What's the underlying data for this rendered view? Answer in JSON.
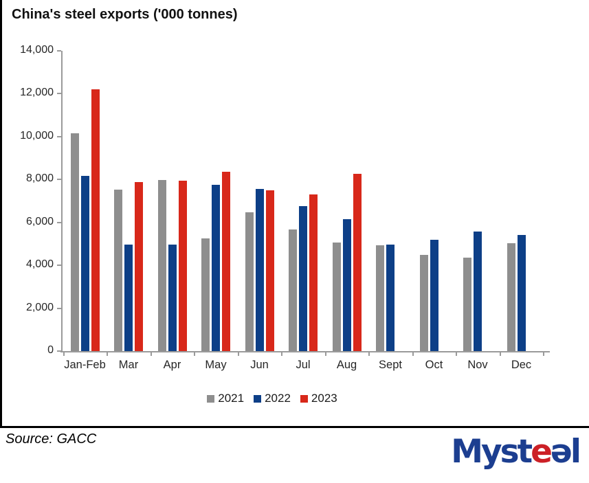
{
  "title": "China's steel exports ('000 tonnes)",
  "source_note": "Source: GACC",
  "logo": {
    "part_myst": "Myst",
    "part_e1": "e",
    "part_e2": "ə",
    "part_l": "l",
    "brand_blue": "#1c3e90",
    "brand_red": "#cc2026"
  },
  "colors": {
    "series_2021": "#8e8e8e",
    "series_2022": "#0d3f87",
    "series_2023": "#d8281a",
    "axis": "#9a9a9a"
  },
  "chart_data": {
    "type": "bar",
    "title": "China's steel exports ('000 tonnes)",
    "categories": [
      "Jan-Feb",
      "Mar",
      "Apr",
      "May",
      "Jun",
      "Jul",
      "Aug",
      "Sept",
      "Oct",
      "Nov",
      "Dec"
    ],
    "series": [
      {
        "name": "2021",
        "color": "#8e8e8e",
        "values": [
          10140,
          7540,
          7970,
          5270,
          6460,
          5670,
          5050,
          4920,
          4500,
          4360,
          5030
        ]
      },
      {
        "name": "2022",
        "color": "#0d3f87",
        "values": [
          8170,
          4950,
          4980,
          7760,
          7550,
          6760,
          6150,
          4980,
          5180,
          5590,
          5400
        ]
      },
      {
        "name": "2023",
        "color": "#d8281a",
        "values": [
          12190,
          7890,
          7930,
          8360,
          7510,
          7310,
          8280,
          null,
          null,
          null,
          null
        ]
      }
    ],
    "xlabel": "",
    "ylabel": "",
    "ylim": [
      0,
      14000
    ],
    "ytick_step": 2000,
    "ytick_labels": [
      "0",
      "2,000",
      "4,000",
      "6,000",
      "8,000",
      "10,000",
      "12,000",
      "14,000"
    ],
    "grid": false,
    "legend_position": "bottom"
  }
}
